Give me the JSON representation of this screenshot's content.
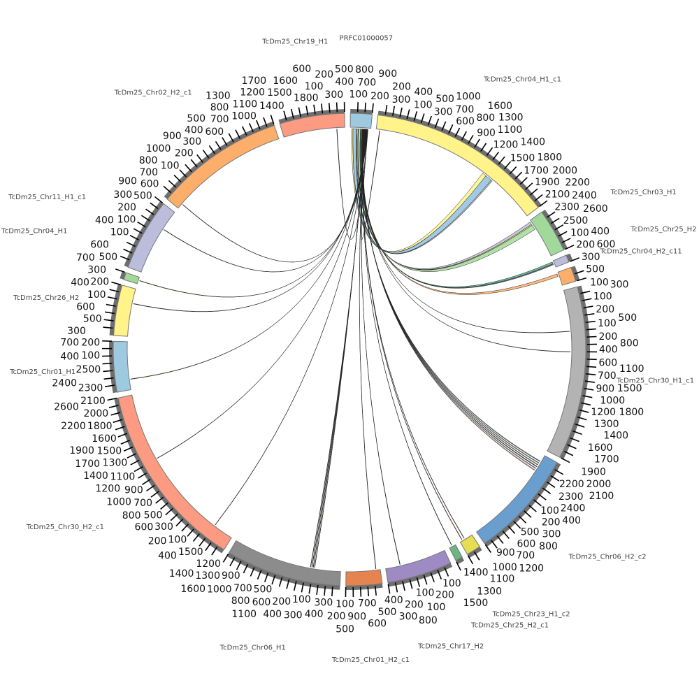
{
  "chart_data": {
    "type": "chord",
    "title": "",
    "tick_interval": 100,
    "segments": [
      {
        "name": "PRFC01000057",
        "length": 300,
        "color": "#9ecae1"
      },
      {
        "name": "TcDm25_Chr04_H1_c1",
        "length": 2600,
        "color": "#fff38a"
      },
      {
        "name": "TcDm25_Chr03_H1",
        "length": 600,
        "color": "#a1d99b"
      },
      {
        "name": "TcDm25_Chr25_H2",
        "length": 100,
        "color": "#bcbddc"
      },
      {
        "name": "TcDm25_Chr04_H2_c11",
        "length": 200,
        "color": "#fdae6b"
      },
      {
        "name": "TcDm25_Chr30_H1_c1",
        "length": 2400,
        "color": "#b3b3b3"
      },
      {
        "name": "TcDm25_Chr06_H2_c2",
        "length": 1500,
        "color": "#6a9ecf"
      },
      {
        "name": "TcDm25_Chr23_H1_c2",
        "length": 200,
        "color": "#e6dd50"
      },
      {
        "name": "TcDm25_Chr25_H2_c1",
        "length": 100,
        "color": "#6db583"
      },
      {
        "name": "TcDm25_Chr17_H2",
        "length": 900,
        "color": "#9e8bc3"
      },
      {
        "name": "TcDm25_Chr01_H2_c1",
        "length": 500,
        "color": "#e6844f"
      },
      {
        "name": "TcDm25_Chr06_H1",
        "length": 1600,
        "color": "#8c8c8c"
      },
      {
        "name": "TcDm25_Chr30_H2_c1",
        "length": 2600,
        "color": "#fc9a82"
      },
      {
        "name": "TcDm25_Chr01_H1",
        "length": 700,
        "color": "#9ecae1"
      },
      {
        "name": "TcDm25_Chr26_H2",
        "length": 700,
        "color": "#fff38a"
      },
      {
        "name": "TcDm25_Chr04_H1",
        "length": 100,
        "color": "#a1d99b"
      },
      {
        "name": "TcDm25_Chr11_H1_c1",
        "length": 1000,
        "color": "#bcbddc"
      },
      {
        "name": "TcDm25_Chr02_H2_c1",
        "length": 1800,
        "color": "#fdae6b"
      },
      {
        "name": "TcDm25_Chr19_H1",
        "length": 900,
        "color": "#fc9a82"
      }
    ],
    "links": [
      {
        "source": [
          0,
          20,
          40
        ],
        "target": [
          1,
          1700,
          1760
        ],
        "color": "#fff38a"
      },
      {
        "source": [
          0,
          40,
          90
        ],
        "target": [
          1,
          1760,
          1860
        ],
        "color": "#8fc1e0"
      },
      {
        "source": [
          0,
          90,
          100
        ],
        "target": [
          1,
          1860,
          1880
        ],
        "color": "#b3b3b3"
      },
      {
        "source": [
          0,
          100,
          115
        ],
        "target": [
          2,
          20,
          60
        ],
        "color": "#bcbddc"
      },
      {
        "source": [
          0,
          115,
          120
        ],
        "target": [
          2,
          60,
          75
        ],
        "color": "#f0e442"
      },
      {
        "source": [
          0,
          120,
          150
        ],
        "target": [
          2,
          75,
          150
        ],
        "color": "#a1d99b"
      },
      {
        "source": [
          0,
          150,
          160
        ],
        "target": [
          3,
          10,
          40
        ],
        "color": "#4daf7c"
      },
      {
        "source": [
          0,
          160,
          165
        ],
        "target": [
          3,
          40,
          55
        ],
        "color": "#6a51a3"
      },
      {
        "source": [
          0,
          165,
          175
        ],
        "target": [
          4,
          20,
          60
        ],
        "color": "#fdae6b"
      },
      {
        "source": [
          0,
          176,
          179
        ],
        "target": [
          5,
          600,
          605
        ],
        "color": "#555555"
      },
      {
        "source": [
          0,
          179,
          182
        ],
        "target": [
          5,
          900,
          905
        ],
        "color": "#555555"
      },
      {
        "source": [
          0,
          182,
          186
        ],
        "target": [
          6,
          100,
          110
        ],
        "color": "#2c7fb8"
      },
      {
        "source": [
          0,
          186,
          190
        ],
        "target": [
          6,
          130,
          140
        ],
        "color": "#e6844f"
      },
      {
        "source": [
          0,
          190,
          194
        ],
        "target": [
          6,
          160,
          170
        ],
        "color": "#4daf7c"
      },
      {
        "source": [
          0,
          194,
          198
        ],
        "target": [
          6,
          190,
          200
        ],
        "color": "#333333"
      },
      {
        "source": [
          0,
          198,
          202
        ],
        "target": [
          6,
          220,
          230
        ],
        "color": "#9e8bc3"
      },
      {
        "source": [
          0,
          202,
          206
        ],
        "target": [
          6,
          250,
          260
        ],
        "color": "#fdae6b"
      },
      {
        "source": [
          0,
          206,
          209
        ],
        "target": [
          7,
          120,
          126
        ],
        "color": "#8c510a"
      },
      {
        "source": [
          0,
          209,
          212
        ],
        "target": [
          7,
          160,
          166
        ],
        "color": "#d73027"
      },
      {
        "source": [
          0,
          212,
          215
        ],
        "target": [
          8,
          50,
          56
        ],
        "color": "#1b7837"
      },
      {
        "source": [
          0,
          215,
          218
        ],
        "target": [
          9,
          680,
          686
        ],
        "color": "#08306b"
      },
      {
        "source": [
          0,
          218,
          221
        ],
        "target": [
          10,
          60,
          66
        ],
        "color": "#a6611a"
      },
      {
        "source": [
          0,
          221,
          224
        ],
        "target": [
          11,
          380,
          386
        ],
        "color": "#bdb000"
      },
      {
        "source": [
          0,
          224,
          227
        ],
        "target": [
          11,
          400,
          406
        ],
        "color": "#2c7fb8"
      },
      {
        "source": [
          0,
          227,
          230
        ],
        "target": [
          11,
          420,
          426
        ],
        "color": "#b2182b"
      },
      {
        "source": [
          0,
          230,
          233
        ],
        "target": [
          11,
          440,
          446
        ],
        "color": "#555555"
      },
      {
        "source": [
          0,
          233,
          236
        ],
        "target": [
          12,
          300,
          306
        ],
        "color": "#6a51a3"
      },
      {
        "source": [
          0,
          236,
          239
        ],
        "target": [
          12,
          1600,
          1606
        ],
        "color": "#2c7fb8"
      },
      {
        "source": [
          0,
          239,
          242
        ],
        "target": [
          13,
          150,
          156
        ],
        "color": "#bdb000"
      },
      {
        "source": [
          0,
          242,
          245
        ],
        "target": [
          14,
          480,
          486
        ],
        "color": "#555555"
      },
      {
        "source": [
          0,
          245,
          248
        ],
        "target": [
          15,
          50,
          56
        ],
        "color": "#bdb000"
      },
      {
        "source": [
          0,
          248,
          251
        ],
        "target": [
          16,
          700,
          706
        ],
        "color": "#333333"
      },
      {
        "source": [
          0,
          251,
          254
        ],
        "target": [
          17,
          80,
          86
        ],
        "color": "#333333"
      },
      {
        "source": [
          0,
          254,
          257
        ],
        "target": [
          18,
          780,
          786
        ],
        "color": "#333333"
      },
      {
        "source": [
          0,
          257,
          260
        ],
        "target": [
          1,
          50,
          56
        ],
        "color": "#333333"
      }
    ]
  }
}
